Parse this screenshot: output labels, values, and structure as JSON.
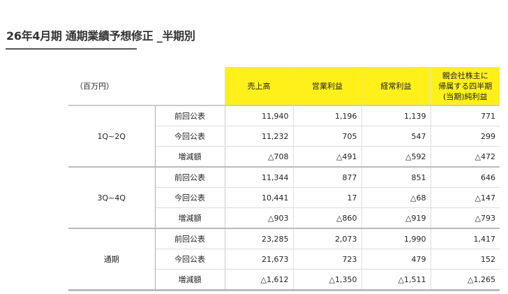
{
  "title": "26年4月期 通期業績予想修正 _半期別",
  "table": {
    "unit": "（百万円）",
    "headers": [
      "売上高",
      "営業利益",
      "経常利益",
      "親会社株主に\n帰属する四半期\n(当期)純利益"
    ],
    "header_color": "#fff01a",
    "groups": [
      {
        "label": "1Q~2Q",
        "rows": [
          {
            "label": "前回公表",
            "values": [
              "11,940",
              "1,196",
              "1,139",
              "771"
            ]
          },
          {
            "label": "今回公表",
            "values": [
              "11,232",
              "705",
              "547",
              "299"
            ]
          },
          {
            "label": "増減額",
            "values": [
              "△708",
              "△491",
              "△592",
              "△472"
            ]
          }
        ]
      },
      {
        "label": "3Q~4Q",
        "rows": [
          {
            "label": "前回公表",
            "values": [
              "11,344",
              "877",
              "851",
              "646"
            ]
          },
          {
            "label": "今回公表",
            "values": [
              "10,441",
              "17",
              "△68",
              "△147"
            ]
          },
          {
            "label": "増減額",
            "values": [
              "△903",
              "△860",
              "△919",
              "△793"
            ]
          }
        ]
      },
      {
        "label": "通期",
        "rows": [
          {
            "label": "前回公表",
            "values": [
              "23,285",
              "2,073",
              "1,990",
              "1,417"
            ]
          },
          {
            "label": "今回公表",
            "values": [
              "21,673",
              "723",
              "479",
              "152"
            ]
          },
          {
            "label": "増減額",
            "values": [
              "△1,612",
              "△1,350",
              "△1,511",
              "△1,265"
            ]
          }
        ]
      }
    ]
  }
}
